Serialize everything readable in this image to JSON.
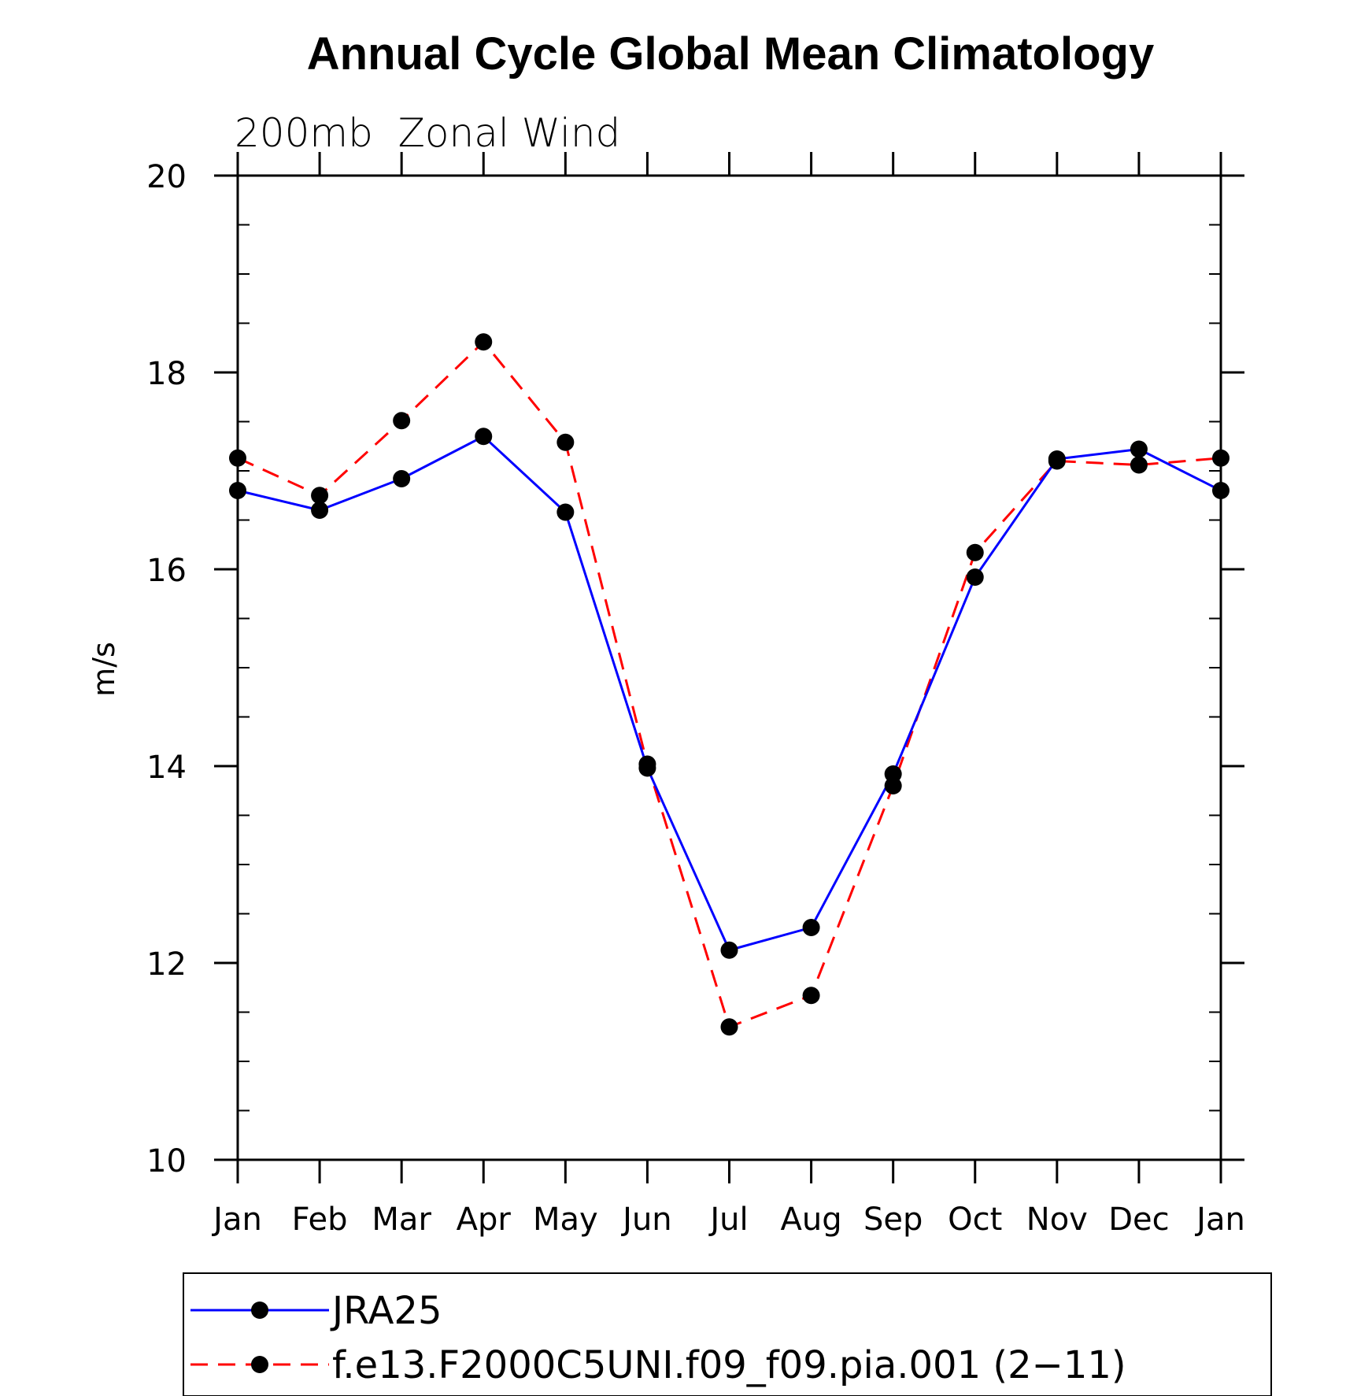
{
  "chart_data": {
    "type": "line",
    "title": "Annual Cycle Global Mean Climatology",
    "subtitle": "200mb  Zonal Wind",
    "xlabel": "",
    "ylabel": "m/s",
    "categories": [
      "Jan",
      "Feb",
      "Mar",
      "Apr",
      "May",
      "Jun",
      "Jul",
      "Aug",
      "Sep",
      "Oct",
      "Nov",
      "Dec",
      "Jan"
    ],
    "ylim": [
      10,
      20
    ],
    "yticks": [
      10,
      12,
      14,
      16,
      18,
      20
    ],
    "grid": false,
    "legend_position": "bottom",
    "series": [
      {
        "name": "JRA25",
        "color": "#0000ff",
        "style": "solid",
        "marker": "filled-circle",
        "values": [
          16.8,
          16.6,
          16.92,
          17.35,
          16.58,
          13.98,
          12.13,
          12.36,
          13.92,
          15.92,
          17.12,
          17.22,
          16.8
        ]
      },
      {
        "name": "f.e13.F2000C5UNI.f09_f09.pia.001 (2−11)",
        "color": "#ff0000",
        "style": "dashed",
        "marker": "filled-circle",
        "values": [
          17.13,
          16.75,
          17.51,
          18.31,
          17.29,
          14.02,
          11.35,
          11.67,
          13.8,
          16.17,
          17.1,
          17.06,
          17.13
        ]
      }
    ]
  }
}
